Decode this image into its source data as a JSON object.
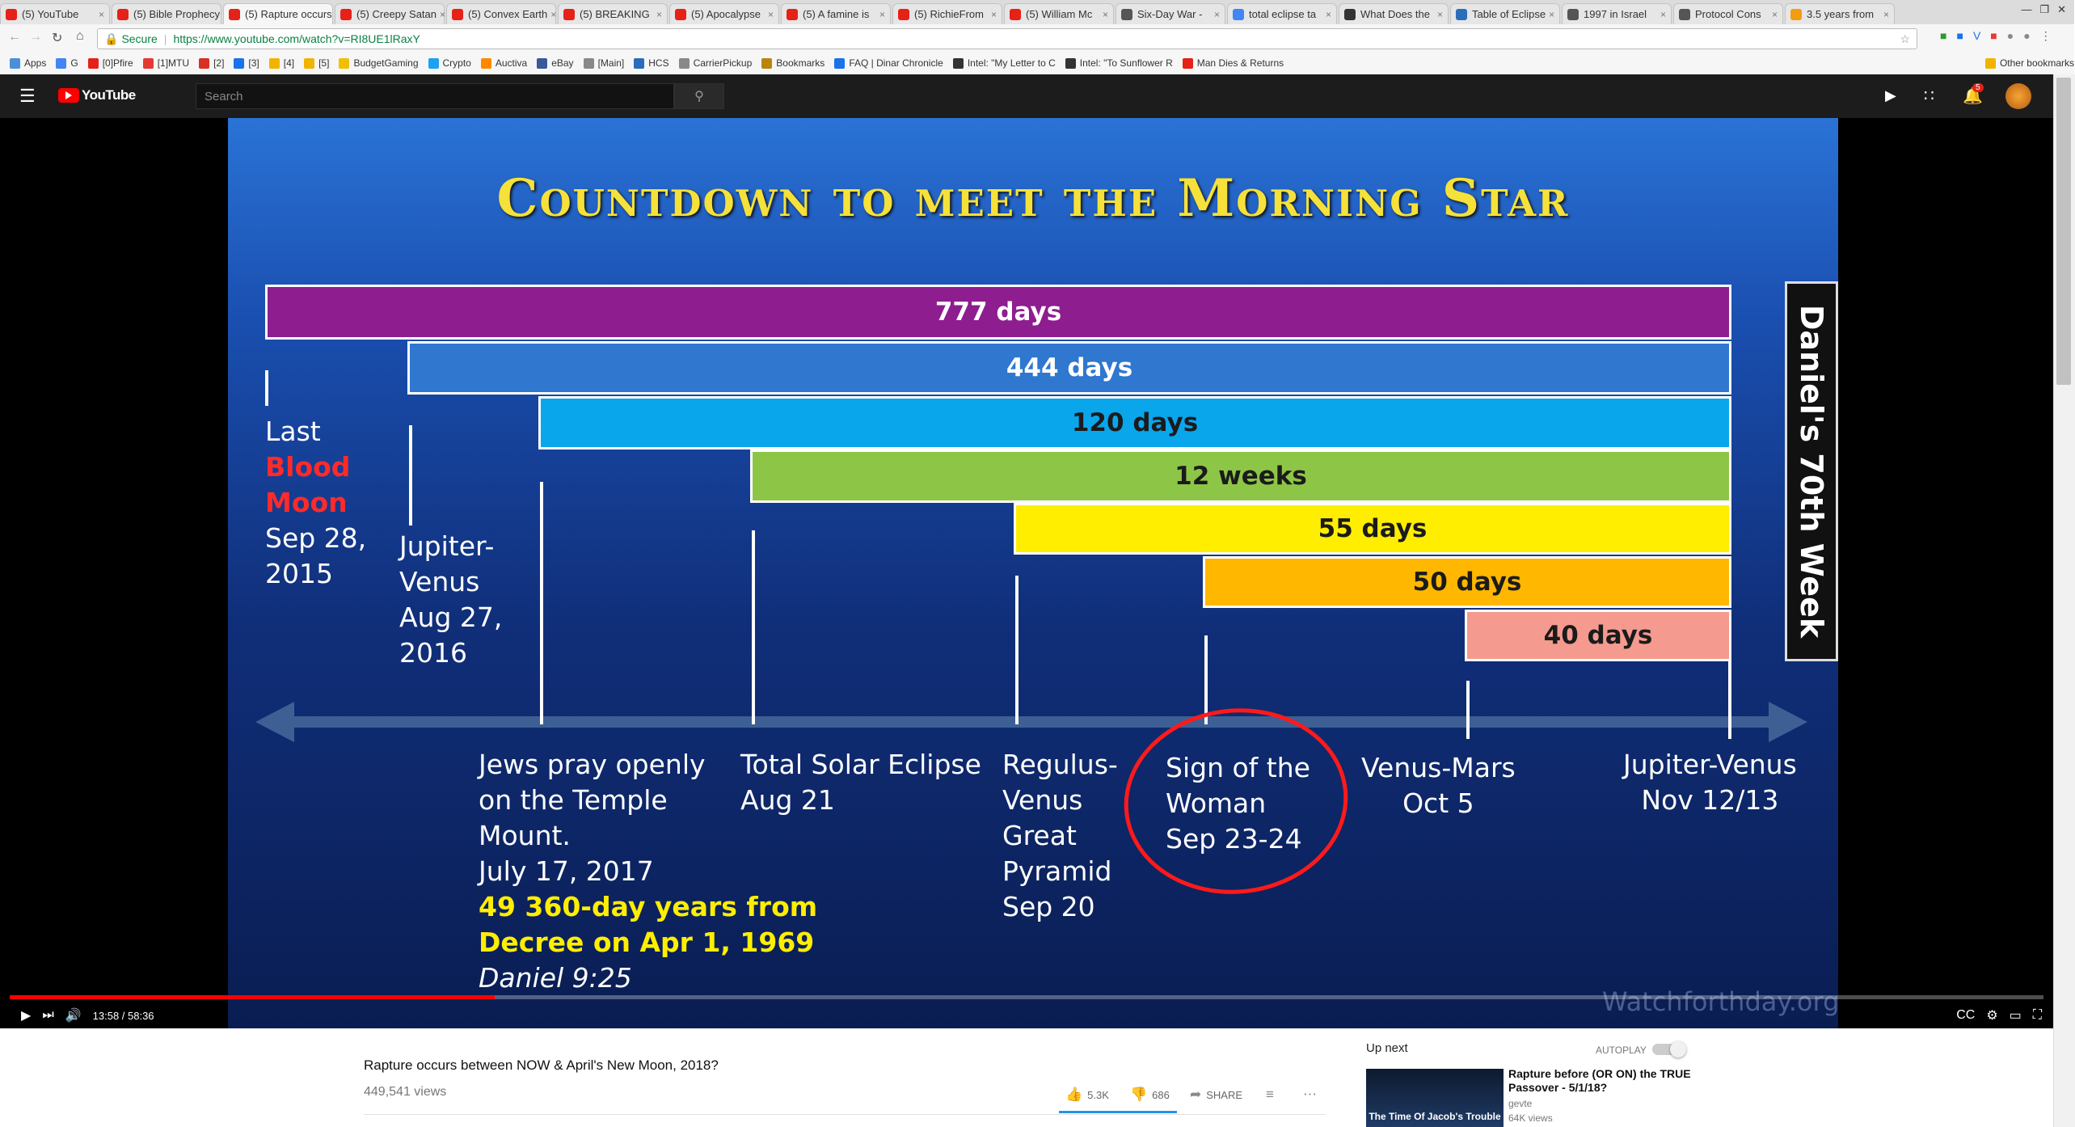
{
  "browser": {
    "tabs": [
      {
        "label": "(5) YouTube",
        "color": "#e62117"
      },
      {
        "label": "(5) Bible Prophecy",
        "color": "#e62117"
      },
      {
        "label": "(5) Rapture occurs",
        "color": "#e62117",
        "active": true
      },
      {
        "label": "(5) Creepy Satan",
        "color": "#e62117"
      },
      {
        "label": "(5) Convex Earth",
        "color": "#e62117"
      },
      {
        "label": "(5) BREAKING",
        "color": "#e62117"
      },
      {
        "label": "(5) Apocalypse",
        "color": "#e62117"
      },
      {
        "label": "(5) A famine is",
        "color": "#e62117"
      },
      {
        "label": "(5) RichieFrom",
        "color": "#e62117"
      },
      {
        "label": "(5) William Mc",
        "color": "#e62117"
      },
      {
        "label": "Six-Day War -",
        "color": "#555555"
      },
      {
        "label": "total eclipse ta",
        "color": "#4285f4"
      },
      {
        "label": "What Does the",
        "color": "#333333"
      },
      {
        "label": "Table of Eclipse",
        "color": "#2a6ebb"
      },
      {
        "label": "1997 in Israel",
        "color": "#555555"
      },
      {
        "label": "Protocol Cons",
        "color": "#555555"
      },
      {
        "label": "3.5 years from",
        "color": "#f39c12"
      }
    ],
    "url_secure": "Secure",
    "url": "https://www.youtube.com/watch?v=RI8UE1lRaxY",
    "bookmarks": [
      "Apps",
      "G",
      "[0]Pfire",
      "[1]MTU",
      "[2]",
      "[3]",
      "[4]",
      "[5]",
      "BudgetGaming",
      "Crypto",
      "Auctiva",
      "eBay",
      "[Main]",
      "HCS",
      "CarrierPickup",
      "Bookmarks",
      "FAQ | Dinar Chronicle",
      "Intel: \"My Letter to C",
      "Intel: \"To Sunflower R",
      "Man Dies & Returns",
      "Other bookmarks"
    ]
  },
  "youtube": {
    "logo": "YouTube",
    "search_placeholder": "Search",
    "notification_count": "5"
  },
  "slide": {
    "title": "Countdown to meet the Morning Star",
    "side_label": "Daniel's 70th Week",
    "bars": [
      {
        "label": "777 days",
        "color": "#8e1d8f",
        "text_color": "#ffffff"
      },
      {
        "label": "444 days",
        "color": "#2f77cf",
        "text_color": "#ffffff"
      },
      {
        "label": "120 days",
        "color": "#0aa6ec",
        "text_color": "#1b1b1b"
      },
      {
        "label": "12 weeks",
        "color": "#8dc647",
        "text_color": "#1b1b1b"
      },
      {
        "label": "55 days",
        "color": "#ffee00",
        "text_color": "#1b1b1b"
      },
      {
        "label": "50 days",
        "color": "#ffb700",
        "text_color": "#1b1b1b"
      },
      {
        "label": "40 days",
        "color": "#f59a8f",
        "text_color": "#1b1b1b"
      }
    ],
    "events": {
      "blood_moon": {
        "line1": "Last",
        "line2": "Blood",
        "line3": "Moon",
        "line4": "Sep 28,",
        "line5": "2015"
      },
      "jupiter_venus_2016": {
        "line1": "Jupiter-",
        "line2": "Venus",
        "line3": "Aug 27,",
        "line4": "2016"
      },
      "jews_pray": {
        "line1": "Jews pray openly",
        "line2": "on the Temple",
        "line3": "Mount.",
        "line4": "July 17, 2017",
        "line5": "49 360-day years from",
        "line6": "Decree on Apr 1, 1969",
        "line7": "Daniel 9:25"
      },
      "eclipse": {
        "line1": "Total Solar Eclipse",
        "line2": "Aug 21"
      },
      "regulus": {
        "line1": "Regulus-",
        "line2": "Venus",
        "line3": "Great",
        "line4": "Pyramid",
        "line5": "Sep 20"
      },
      "woman": {
        "line1": "Sign of the",
        "line2": "Woman",
        "line3": "Sep 23-24"
      },
      "venus_mars": {
        "line1": "Venus-Mars",
        "line2": "Oct 5"
      },
      "jupiter_venus_2017": {
        "line1": "Jupiter-Venus",
        "line2": "Nov 12/13"
      }
    },
    "watermark": "Watchforthday.org"
  },
  "player": {
    "time": "13:58 / 58:36",
    "progress_fraction": 0.2385
  },
  "video": {
    "title": "Rapture occurs between NOW & April's New Moon, 2018?",
    "views": "449,541 views",
    "likes": "5.3K",
    "dislikes": "686",
    "share": "SHARE"
  },
  "sidebar": {
    "up_next": "Up next",
    "autoplay": "AUTOPLAY",
    "next_video": {
      "thumb_text": "The Time Of Jacob's Trouble",
      "title": "Rapture before (OR ON) the TRUE Passover - 5/1/18?",
      "channel": "gevte",
      "views": "64K views"
    }
  },
  "colors": {
    "accent": "#ff0000",
    "title_yellow": "#f5e13a",
    "blood_red": "#ff2a2a",
    "highlight_yellow": "#ffee00"
  }
}
